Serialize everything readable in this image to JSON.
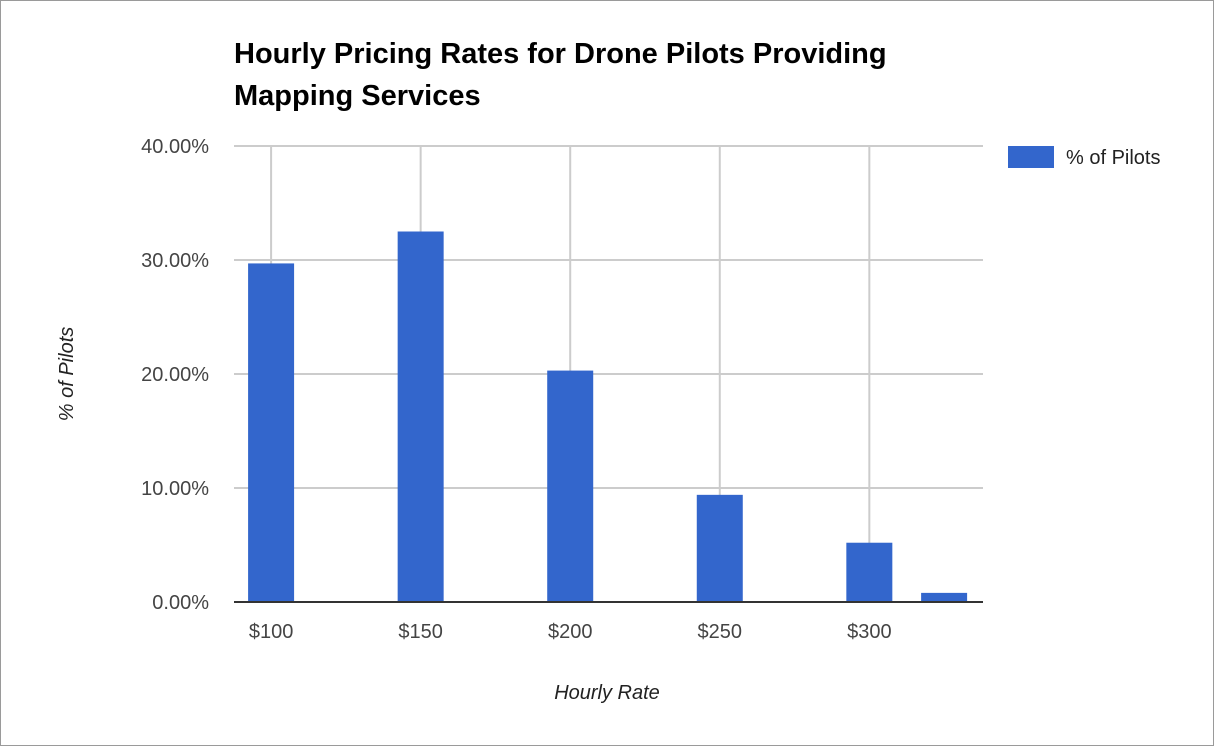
{
  "chart_data": {
    "type": "bar",
    "title_lines": [
      "Hourly Pricing Rates for Drone Pilots Providing",
      "Mapping Services"
    ],
    "xlabel": "Hourly Rate",
    "ylabel": "% of Pilots",
    "x": [
      100,
      150,
      200,
      250,
      300,
      325
    ],
    "x_tick_values": [
      100,
      150,
      200,
      250,
      300
    ],
    "x_tick_labels": [
      "$100",
      "$150",
      "$200",
      "$250",
      "$300"
    ],
    "xlim": [
      87.6,
      338
    ],
    "series": [
      {
        "name": "% of Pilots",
        "values": [
          29.7,
          32.5,
          20.3,
          9.4,
          5.2,
          0.8
        ],
        "color": "#3366cc"
      }
    ],
    "ylim": [
      0,
      40
    ],
    "y_ticks": [
      0,
      10,
      20,
      30,
      40
    ],
    "y_tick_labels": [
      "0.00%",
      "10.00%",
      "20.00%",
      "30.00%",
      "40.00%"
    ],
    "grid": true,
    "legend_position": "right"
  }
}
